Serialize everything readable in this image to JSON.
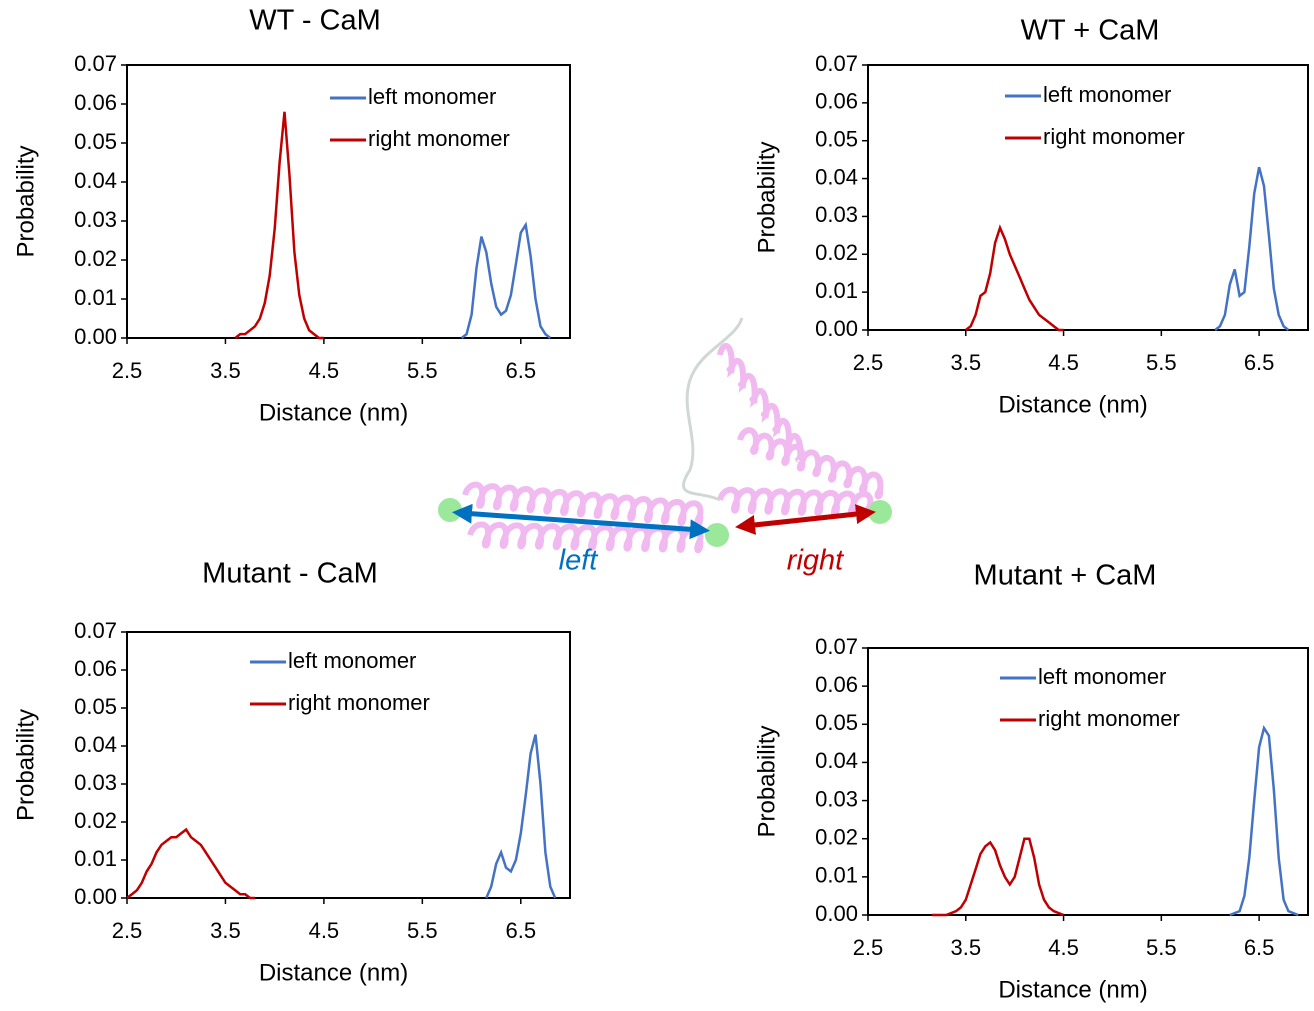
{
  "chart_data": [
    {
      "type": "line",
      "title": "WT - CaM",
      "x_label": "Distance (nm)",
      "y_label": "Probability",
      "xlim": [
        2.5,
        7.0
      ],
      "xticks": [
        2.5,
        3.5,
        4.5,
        5.5,
        6.5
      ],
      "ylim": [
        0,
        0.07
      ],
      "yticks": [
        {
          "value": 0,
          "label": "0.00"
        },
        0.01,
        0.02,
        0.03,
        0.04,
        0.05,
        0.06,
        0.07
      ],
      "series": [
        {
          "name": "left monomer",
          "color": "#4472c4",
          "x": [
            5.9,
            5.95,
            6.0,
            6.05,
            6.1,
            6.15,
            6.2,
            6.25,
            6.3,
            6.35,
            6.4,
            6.45,
            6.5,
            6.55,
            6.6,
            6.65,
            6.7,
            6.75,
            6.8
          ],
          "values": [
            0,
            0.001,
            0.006,
            0.018,
            0.026,
            0.022,
            0.014,
            0.008,
            0.006,
            0.007,
            0.011,
            0.019,
            0.027,
            0.029,
            0.021,
            0.01,
            0.003,
            0.001,
            0
          ]
        },
        {
          "name": "right monomer",
          "color": "#c00000",
          "x": [
            3.6,
            3.65,
            3.7,
            3.75,
            3.8,
            3.85,
            3.9,
            3.95,
            4.0,
            4.05,
            4.1,
            4.15,
            4.2,
            4.25,
            4.3,
            4.35,
            4.4,
            4.45,
            4.5
          ],
          "values": [
            0,
            0.001,
            0.001,
            0.002,
            0.003,
            0.005,
            0.009,
            0.016,
            0.028,
            0.045,
            0.058,
            0.042,
            0.022,
            0.011,
            0.005,
            0.002,
            0.001,
            0,
            0
          ]
        }
      ]
    },
    {
      "type": "line",
      "title": "WT + CaM",
      "x_label": "Distance (nm)",
      "y_label": "Probability",
      "xlim": [
        2.5,
        7.0
      ],
      "xticks": [
        2.5,
        3.5,
        4.5,
        5.5,
        6.5
      ],
      "ylim": [
        0,
        0.07
      ],
      "yticks": [
        {
          "value": 0,
          "label": "0.00"
        },
        0.01,
        0.02,
        0.03,
        0.04,
        0.05,
        0.06,
        0.07
      ],
      "series": [
        {
          "name": "left monomer",
          "color": "#4472c4",
          "x": [
            6.05,
            6.1,
            6.15,
            6.2,
            6.25,
            6.3,
            6.35,
            6.4,
            6.45,
            6.5,
            6.55,
            6.6,
            6.65,
            6.7,
            6.75,
            6.8
          ],
          "values": [
            0,
            0.001,
            0.004,
            0.012,
            0.016,
            0.009,
            0.01,
            0.022,
            0.036,
            0.043,
            0.038,
            0.025,
            0.011,
            0.004,
            0.001,
            0
          ]
        },
        {
          "name": "right monomer",
          "color": "#c00000",
          "x": [
            3.5,
            3.55,
            3.6,
            3.65,
            3.7,
            3.75,
            3.8,
            3.85,
            3.9,
            3.95,
            4.0,
            4.05,
            4.1,
            4.15,
            4.2,
            4.25,
            4.3,
            4.35,
            4.4,
            4.45,
            4.5
          ],
          "values": [
            0,
            0.001,
            0.004,
            0.009,
            0.01,
            0.015,
            0.023,
            0.027,
            0.024,
            0.02,
            0.017,
            0.014,
            0.011,
            0.008,
            0.006,
            0.004,
            0.003,
            0.002,
            0.001,
            0,
            0
          ]
        }
      ]
    },
    {
      "type": "line",
      "title": "Mutant - CaM",
      "x_label": "Distance (nm)",
      "y_label": "Probability",
      "xlim": [
        2.5,
        7.0
      ],
      "xticks": [
        2.5,
        3.5,
        4.5,
        5.5,
        6.5
      ],
      "ylim": [
        0,
        0.07
      ],
      "yticks": [
        {
          "value": 0,
          "label": "0.00"
        },
        0.01,
        0.02,
        0.03,
        0.04,
        0.05,
        0.06,
        0.07
      ],
      "series": [
        {
          "name": "left monomer",
          "color": "#4472c4",
          "x": [
            6.15,
            6.2,
            6.25,
            6.3,
            6.35,
            6.4,
            6.45,
            6.5,
            6.55,
            6.6,
            6.65,
            6.7,
            6.75,
            6.8,
            6.85
          ],
          "values": [
            0,
            0.003,
            0.009,
            0.012,
            0.008,
            0.007,
            0.01,
            0.017,
            0.027,
            0.038,
            0.043,
            0.03,
            0.012,
            0.003,
            0
          ]
        },
        {
          "name": "right monomer",
          "color": "#c00000",
          "x": [
            2.5,
            2.55,
            2.6,
            2.65,
            2.7,
            2.75,
            2.8,
            2.85,
            2.9,
            2.95,
            3.0,
            3.05,
            3.1,
            3.15,
            3.2,
            3.25,
            3.3,
            3.35,
            3.4,
            3.45,
            3.5,
            3.55,
            3.6,
            3.65,
            3.7,
            3.75,
            3.8
          ],
          "values": [
            0,
            0.001,
            0.002,
            0.004,
            0.007,
            0.009,
            0.012,
            0.014,
            0.015,
            0.016,
            0.016,
            0.017,
            0.018,
            0.016,
            0.015,
            0.014,
            0.012,
            0.01,
            0.008,
            0.006,
            0.004,
            0.003,
            0.002,
            0.001,
            0.001,
            0,
            0
          ]
        }
      ]
    },
    {
      "type": "line",
      "title": "Mutant + CaM",
      "x_label": "Distance (nm)",
      "y_label": "Probability",
      "xlim": [
        2.5,
        7.0
      ],
      "xticks": [
        2.5,
        3.5,
        4.5,
        5.5,
        6.5
      ],
      "ylim": [
        0,
        0.07
      ],
      "yticks": [
        {
          "value": 0,
          "label": "0.00"
        },
        0.01,
        0.02,
        0.03,
        0.04,
        0.05,
        0.06,
        0.07
      ],
      "series": [
        {
          "name": "left monomer",
          "color": "#4472c4",
          "x": [
            6.2,
            6.3,
            6.35,
            6.4,
            6.45,
            6.5,
            6.55,
            6.6,
            6.65,
            6.7,
            6.75,
            6.8,
            6.9
          ],
          "values": [
            0,
            0.001,
            0.005,
            0.015,
            0.03,
            0.044,
            0.049,
            0.047,
            0.033,
            0.015,
            0.004,
            0.001,
            0
          ]
        },
        {
          "name": "right monomer",
          "color": "#c00000",
          "x": [
            3.15,
            3.3,
            3.4,
            3.45,
            3.5,
            3.55,
            3.6,
            3.65,
            3.7,
            3.75,
            3.8,
            3.85,
            3.9,
            3.95,
            4.0,
            4.05,
            4.1,
            4.15,
            4.2,
            4.25,
            4.3,
            4.35,
            4.4,
            4.5
          ],
          "values": [
            0,
            0,
            0.001,
            0.002,
            0.004,
            0.008,
            0.012,
            0.016,
            0.018,
            0.019,
            0.017,
            0.013,
            0.01,
            0.008,
            0.01,
            0.015,
            0.02,
            0.02,
            0.015,
            0.008,
            0.004,
            0.002,
            0.001,
            0
          ]
        }
      ]
    }
  ],
  "diagram": {
    "labels": [
      "left",
      "right"
    ]
  }
}
